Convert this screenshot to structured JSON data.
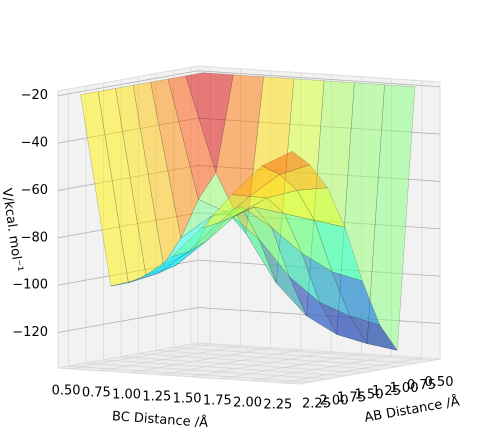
{
  "chart_data": {
    "type": "surface",
    "xlabel": "BC Distance /Å",
    "ylabel": "AB Distance /Å",
    "zlabel": "V/kcal. mol⁻¹",
    "x": [
      0.5,
      0.75,
      1.0,
      1.25,
      1.5,
      1.75,
      2.0,
      2.25
    ],
    "y": [
      0.5,
      0.75,
      1.0,
      1.25,
      1.5,
      1.75,
      2.0,
      2.25
    ],
    "z": [
      [
        -20,
        -20,
        -20,
        -20,
        -20,
        -20,
        -20,
        -20
      ],
      [
        -20,
        -60,
        -85,
        -105,
        -118,
        -125,
        -128,
        -130
      ],
      [
        -20,
        -70,
        -75,
        -85,
        -100,
        -110,
        -115,
        -118
      ],
      [
        -20,
        -85,
        -75,
        -70,
        -78,
        -88,
        -95,
        -98
      ],
      [
        -20,
        -95,
        -88,
        -75,
        -68,
        -70,
        -72,
        -74
      ],
      [
        -20,
        -98,
        -93,
        -82,
        -70,
        -62,
        -58,
        -56
      ],
      [
        -20,
        -100,
        -95,
        -85,
        -72,
        -60,
        -50,
        -45
      ],
      [
        -20,
        -100,
        -96,
        -86,
        -73,
        -58,
        -45,
        -38
      ]
    ],
    "colormap": "jet",
    "xlim": [
      0.4,
      2.4
    ],
    "ylim": [
      0.4,
      2.4
    ],
    "zlim": [
      -135,
      -18
    ],
    "xticks": [
      {
        "value": 0.5,
        "label": "0.50"
      },
      {
        "value": 0.75,
        "label": "0.75"
      },
      {
        "value": 1.0,
        "label": "1.00"
      },
      {
        "value": 1.25,
        "label": "1.25"
      },
      {
        "value": 1.5,
        "label": "1.50"
      },
      {
        "value": 1.75,
        "label": "1.75"
      },
      {
        "value": 2.0,
        "label": "2.00"
      },
      {
        "value": 2.25,
        "label": "2.25"
      }
    ],
    "yticks": [
      {
        "value": 0.5,
        "label": "0.50"
      },
      {
        "value": 0.75,
        "label": "0.75"
      },
      {
        "value": 1.0,
        "label": "1.00"
      },
      {
        "value": 1.25,
        "label": "1.25"
      },
      {
        "value": 1.5,
        "label": "1.50"
      },
      {
        "value": 1.75,
        "label": "1.75"
      },
      {
        "value": 2.0,
        "label": "2.00"
      },
      {
        "value": 2.25,
        "label": "2.25"
      }
    ],
    "zticks": [
      {
        "value": -20,
        "label": "−20"
      },
      {
        "value": -40,
        "label": "−40"
      },
      {
        "value": -60,
        "label": "−60"
      },
      {
        "value": -80,
        "label": "−80"
      },
      {
        "value": -100,
        "label": "−100"
      },
      {
        "value": -120,
        "label": "−120"
      }
    ]
  }
}
